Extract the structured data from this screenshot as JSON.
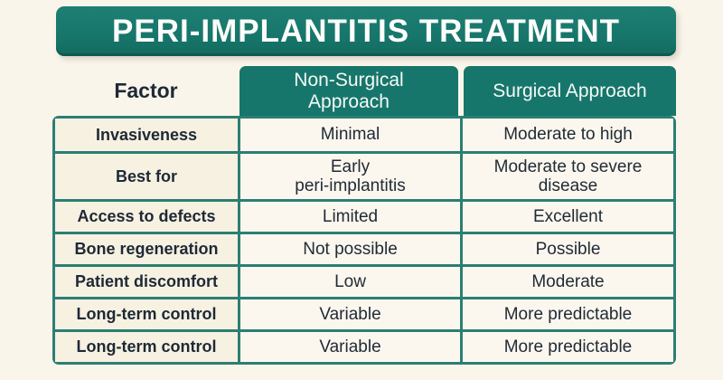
{
  "banner": {
    "title": "PERI-IMPLANTITIS TREATMENT"
  },
  "table": {
    "header": {
      "factor": "Factor",
      "non_surgical": "Non-Surgical\nApproach",
      "surgical": "Surgical Approach"
    },
    "rows": [
      {
        "factor": "Invasiveness",
        "non_surgical": "Minimal",
        "surgical": "Moderate to high"
      },
      {
        "factor": "Best for",
        "non_surgical": "Early\nperi-implantitis",
        "surgical": "Moderate to severe\ndisease"
      },
      {
        "factor": "Access to defects",
        "non_surgical": "Limited",
        "surgical": "Excellent"
      },
      {
        "factor": "Bone regeneration",
        "non_surgical": "Not possible",
        "surgical": "Possible"
      },
      {
        "factor": "Patient discomfort",
        "non_surgical": "Low",
        "surgical": "Moderate"
      },
      {
        "factor": "Long-term control",
        "non_surgical": "Variable",
        "surgical": "More predictable"
      },
      {
        "factor": "Long-term control",
        "non_surgical": "Variable",
        "surgical": "More predictable"
      }
    ]
  },
  "colors": {
    "teal": "#17766B",
    "teal_dark": "#136A60",
    "grid_border": "#2C7E74",
    "background_cream": "#FAF5EA",
    "factor_cell": "#F7F1E1",
    "data_cell": "#FBF7EE",
    "text_navy": "#1E2936",
    "header_text": "#FCFDFB"
  },
  "chart_data": {
    "type": "table",
    "title": "PERI-IMPLANTITIS TREATMENT",
    "columns": [
      "Factor",
      "Non-Surgical Approach",
      "Surgical Approach"
    ],
    "rows": [
      [
        "Invasiveness",
        "Minimal",
        "Moderate to high"
      ],
      [
        "Best for",
        "Early peri-implantitis",
        "Moderate to severe disease"
      ],
      [
        "Access to defects",
        "Limited",
        "Excellent"
      ],
      [
        "Bone regeneration",
        "Not possible",
        "Possible"
      ],
      [
        "Patient discomfort",
        "Low",
        "Moderate"
      ],
      [
        "Long-term control",
        "Variable",
        "More predictable"
      ],
      [
        "Long-term control",
        "Variable",
        "More predictable"
      ]
    ]
  }
}
